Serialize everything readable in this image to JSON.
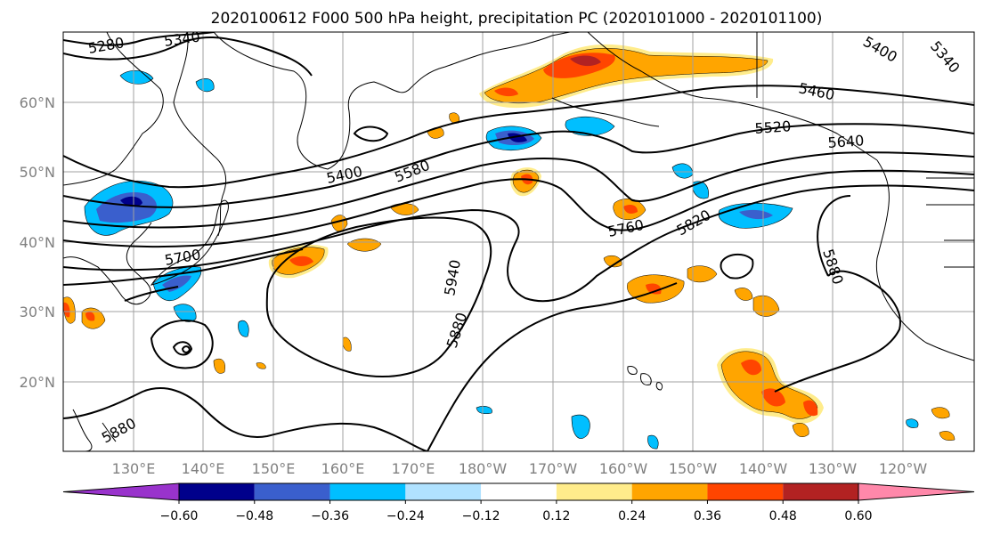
{
  "title": "2020100612 F000 500 hPa height, precipitation PC (2020101000 - 2020101100)",
  "lat_ticks": [
    "20°N",
    "30°N",
    "40°N",
    "50°N",
    "60°N"
  ],
  "lon_ticks": [
    "130°E",
    "140°E",
    "150°E",
    "160°E",
    "170°E",
    "180°W",
    "170°W",
    "160°W",
    "150°W",
    "140°W",
    "130°W",
    "120°W"
  ],
  "contour_labels": [
    "5280",
    "5340",
    "5400",
    "5460",
    "5520",
    "5580",
    "5640",
    "5700",
    "5760",
    "5820",
    "5880",
    "5940",
    "5880",
    "5880",
    "5400",
    "5340"
  ],
  "colorbar": {
    "colors": [
      "#9933cc",
      "#00008b",
      "#3a5fcd",
      "#00bfff",
      "#b0e2ff",
      "#ffffff",
      "#ffec8b",
      "#ffa500",
      "#ff4500",
      "#b22222",
      "#ff88aa"
    ],
    "ticks": [
      "−0.60",
      "−0.48",
      "−0.36",
      "−0.24",
      "−0.12",
      "0.12",
      "0.24",
      "0.36",
      "0.48",
      "0.60"
    ]
  },
  "palette": {
    "neg_strong": "#00008b",
    "neg_mid": "#3a5fcd",
    "neg_light": "#00bfff",
    "neg_faint": "#b0e2ff",
    "pos_faint": "#ffec8b",
    "pos_light": "#ffa500",
    "pos_mid": "#ff4500",
    "pos_strong": "#b22222"
  }
}
